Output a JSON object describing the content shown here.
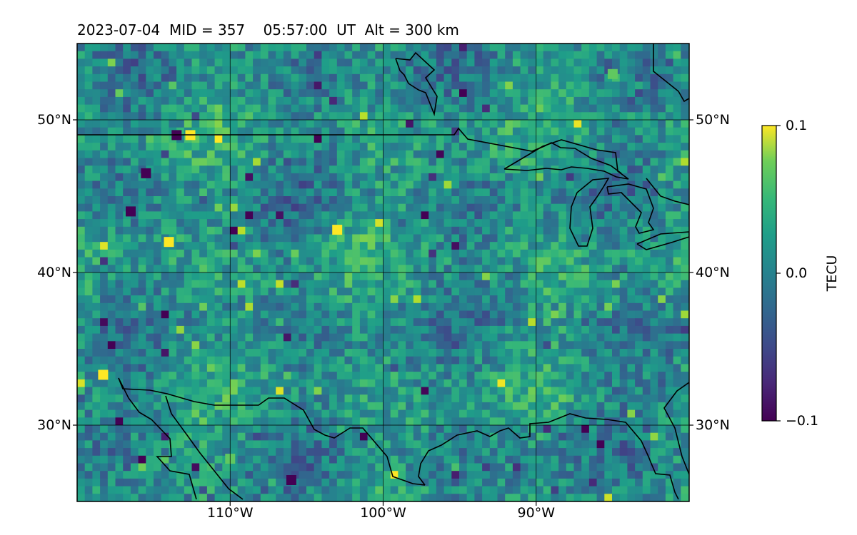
{
  "title": "2023-07-04  MID = 357    05:57:00  UT  Alt = 300 km",
  "map": {
    "lon_range": [
      -120,
      -80
    ],
    "lat_range": [
      25,
      55
    ],
    "grid": true,
    "lat_ticks": [
      {
        "value": 50,
        "label": "50°N"
      },
      {
        "value": 40,
        "label": "40°N"
      },
      {
        "value": 30,
        "label": "30°N"
      }
    ],
    "lon_ticks": [
      {
        "value": -110,
        "label": "110°W"
      },
      {
        "value": -100,
        "label": "100°W"
      },
      {
        "value": -90,
        "label": "90°W"
      }
    ],
    "basemap": "coastlines and country borders (US/Canada, US/Mexico, Great Lakes, Gulf of Mexico)"
  },
  "colorbar": {
    "label": "TECU",
    "colormap": "viridis",
    "min": -0.1,
    "max": 0.1,
    "ticks": [
      {
        "value": 0.1,
        "label": "0.1"
      },
      {
        "value": 0.0,
        "label": "0.0"
      },
      {
        "value": -0.1,
        "label": "−0.1"
      }
    ]
  },
  "chart_data": {
    "type": "heatmap",
    "title": "2023-07-04  MID = 357    05:57:00  UT  Alt = 300 km",
    "xlabel": "",
    "ylabel": "",
    "xlim": [
      -120,
      -80
    ],
    "ylim": [
      25,
      55
    ],
    "colorbar_label": "TECU",
    "value_range": [
      -0.1,
      0.1
    ],
    "background_mean": 0.0,
    "notable_features": [
      {
        "lon": -114,
        "lat": 42,
        "value": 0.1
      },
      {
        "lon": -103,
        "lat": 42.8,
        "value": 0.1
      },
      {
        "lon": -112.6,
        "lat": 49,
        "value": 0.1
      },
      {
        "lon": -118.3,
        "lat": 33.3,
        "value": 0.1
      },
      {
        "lon": -106,
        "lat": 26.4,
        "value": -0.1
      },
      {
        "lon": -116.5,
        "lat": 44,
        "value": -0.1
      },
      {
        "lon": -113.5,
        "lat": 49,
        "value": -0.1
      },
      {
        "lon": -115.5,
        "lat": 46.5,
        "value": -0.1
      },
      {
        "lon": -85,
        "lat": 53,
        "value": 0.05
      },
      {
        "lon": -110,
        "lat": 27.8,
        "value": 0.05
      }
    ]
  }
}
